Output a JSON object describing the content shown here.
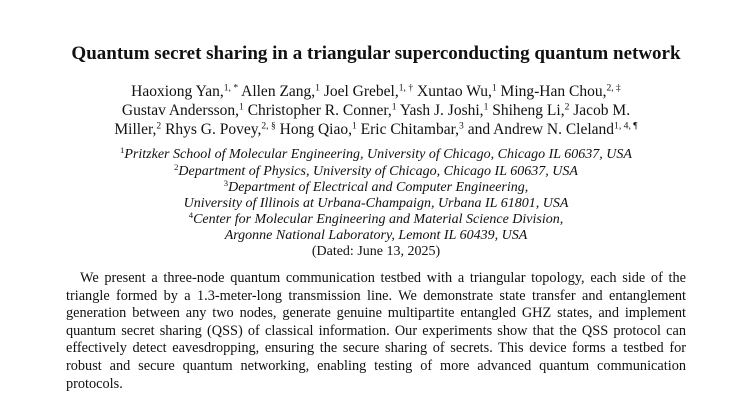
{
  "title": "Quantum secret sharing in a triangular superconducting quantum network",
  "authors": {
    "line1": [
      {
        "name": "Haoxiong Yan,",
        "sup": "1, *"
      },
      {
        "name": " Allen Zang,",
        "sup": "1"
      },
      {
        "name": " Joel Grebel,",
        "sup": "1, †"
      },
      {
        "name": " Xuntao Wu,",
        "sup": "1"
      },
      {
        "name": " Ming-Han Chou,",
        "sup": "2, ‡"
      }
    ],
    "line2": [
      {
        "name": "Gustav Andersson,",
        "sup": "1"
      },
      {
        "name": " Christopher R. Conner,",
        "sup": "1"
      },
      {
        "name": " Yash J. Joshi,",
        "sup": "1"
      },
      {
        "name": " Shiheng Li,",
        "sup": "2"
      },
      {
        "name": " Jacob M.",
        "sup": ""
      }
    ],
    "line3": [
      {
        "name": "Miller,",
        "sup": "2"
      },
      {
        "name": " Rhys G. Povey,",
        "sup": "2, §"
      },
      {
        "name": " Hong Qiao,",
        "sup": "1"
      },
      {
        "name": " Eric Chitambar,",
        "sup": "3"
      },
      {
        "name": " and Andrew N. Cleland",
        "sup": "1, 4, ¶"
      }
    ]
  },
  "affiliations": {
    "a1": {
      "sup": "1",
      "text": "Pritzker School of Molecular Engineering, University of Chicago, Chicago IL 60637, USA"
    },
    "a2": {
      "sup": "2",
      "text": "Department of Physics, University of Chicago, Chicago IL 60637, USA"
    },
    "a3": {
      "sup": "3",
      "text": "Department of Electrical and Computer Engineering,"
    },
    "a3b": {
      "sup": "",
      "text": "University of Illinois at Urbana-Champaign, Urbana IL 61801, USA"
    },
    "a4": {
      "sup": "4",
      "text": "Center for Molecular Engineering and Material Science Division,"
    },
    "a4b": {
      "sup": "",
      "text": "Argonne National Laboratory, Lemont IL 60439, USA"
    }
  },
  "date": "(Dated: June 13, 2025)",
  "abstract": "We present a three-node quantum communication testbed with a triangular topology, each side of the triangle formed by a 1.3-meter-long transmission line. We demonstrate state transfer and entanglement generation between any two nodes, generate genuine multipartite entangled GHZ states, and implement quantum secret sharing (QSS) of classical information. Our experiments show that the QSS protocol can effectively detect eavesdropping, ensuring the secure sharing of secrets. This device forms a testbed for robust and secure quantum networking, enabling testing of more advanced quantum communication protocols."
}
